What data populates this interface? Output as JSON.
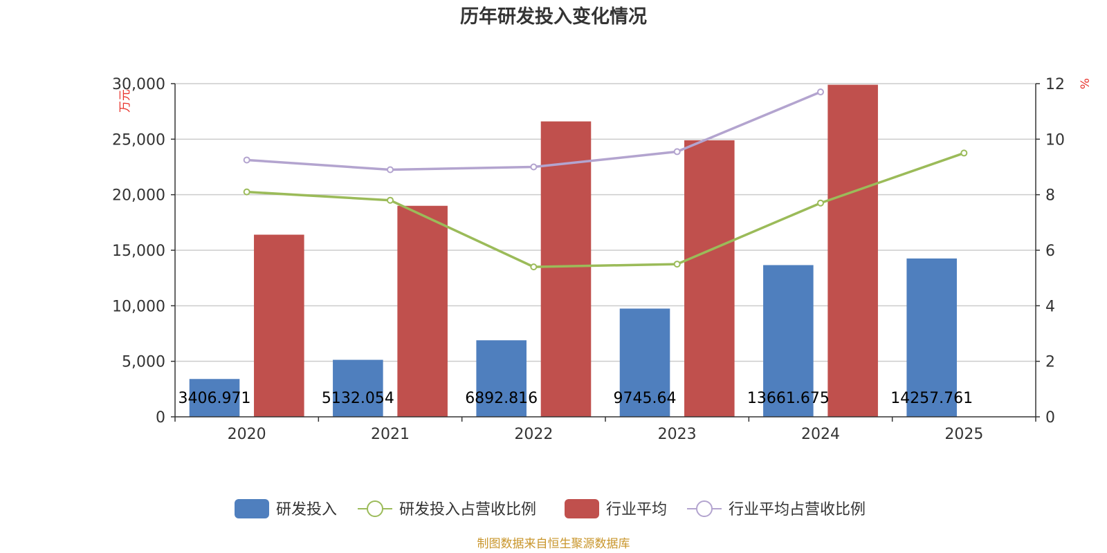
{
  "chart_data": {
    "type": "bar",
    "title": "历年研发投入变化情况",
    "categories": [
      "2020",
      "2021",
      "2022",
      "2023",
      "2024",
      "2025"
    ],
    "y_left": {
      "unit": "万元",
      "ylim": [
        0,
        30000
      ],
      "ticks": [
        "0",
        "5,000",
        "10,000",
        "15,000",
        "20,000",
        "25,000",
        "30,000"
      ]
    },
    "y_right": {
      "unit": "%",
      "ylim": [
        0,
        12
      ],
      "ticks": [
        "0",
        "2",
        "4",
        "6",
        "8",
        "10",
        "12"
      ]
    },
    "series": [
      {
        "name": "研发投入",
        "kind": "bar",
        "axis": "left",
        "color": "#4f7fbe",
        "values": [
          3406.971,
          5132.054,
          6892.816,
          9745.64,
          13661.675,
          14257.761
        ],
        "labels": [
          "3406.971",
          "5132.054",
          "6892.816",
          "9745.64",
          "13661.675",
          "14257.761"
        ]
      },
      {
        "name": "研发投入占营收比例",
        "kind": "line",
        "axis": "right",
        "color": "#9bbb59",
        "values": [
          8.1,
          7.8,
          5.4,
          5.5,
          7.7,
          9.5
        ]
      },
      {
        "name": "行业平均",
        "kind": "bar",
        "axis": "left",
        "color": "#c0504d",
        "values": [
          16400,
          19000,
          26600,
          24900,
          29900,
          null
        ]
      },
      {
        "name": "行业平均占营收比例",
        "kind": "line",
        "axis": "right",
        "color": "#b3a4cf",
        "values": [
          9.25,
          8.9,
          9.0,
          9.55,
          11.7,
          null
        ]
      }
    ],
    "grid": true,
    "legend_position": "bottom"
  },
  "footer": {
    "source": "制图数据来自恒生聚源数据库"
  }
}
